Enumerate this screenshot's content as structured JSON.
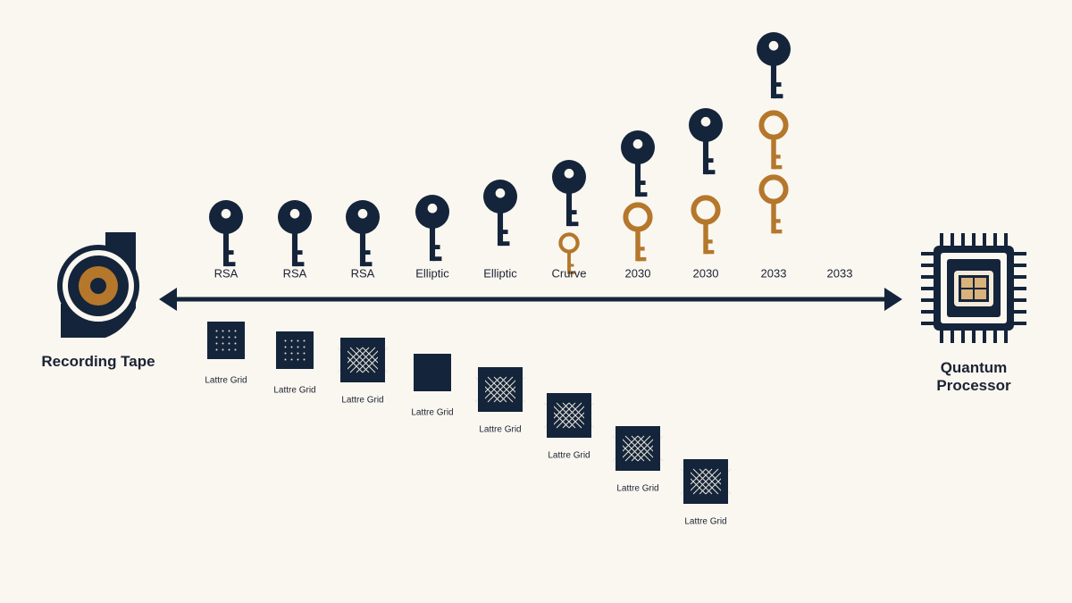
{
  "left": {
    "label": "Recording Tape"
  },
  "right": {
    "label": "Quantum Processor"
  },
  "keys": [
    {
      "label": "RSA"
    },
    {
      "label": "RSA"
    },
    {
      "label": "RSA"
    },
    {
      "label": "Elliptic"
    },
    {
      "label": "Elliptic"
    },
    {
      "label": "Crurve"
    },
    {
      "label": "2030"
    },
    {
      "label": "2030"
    },
    {
      "label": "2033"
    },
    {
      "label": "2033"
    }
  ],
  "grids": [
    {
      "label": "Lattre Grid"
    },
    {
      "label": "Lattre Grid"
    },
    {
      "label": "Lattre Grid"
    },
    {
      "label": "Lattre Grid"
    },
    {
      "label": "Lattre Grid"
    },
    {
      "label": "Lattre Grid"
    },
    {
      "label": "Lattre Grid"
    },
    {
      "label": "Lattre Grid"
    }
  ]
}
